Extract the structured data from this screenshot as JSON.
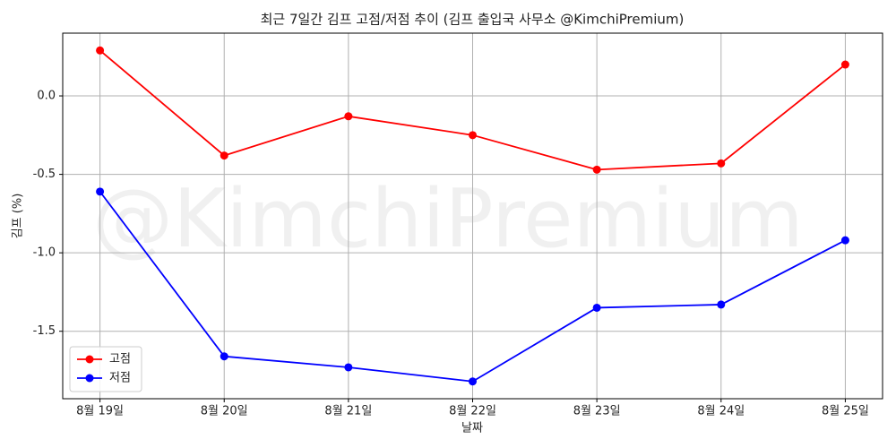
{
  "chart_data": {
    "type": "line",
    "title": "최근 7일간 김프 고점/저점 추이 (김프 출입국 사무소 @KimchiPremium)",
    "watermark": "@KimchiPremium",
    "x_label": "날짜",
    "y_label": "김프 (%)",
    "categories": [
      "8월 19일",
      "8월 20일",
      "8월 21일",
      "8월 22일",
      "8월 23일",
      "8월 24일",
      "8월 25일"
    ],
    "series": [
      {
        "name": "고점",
        "color": "#ff0000",
        "values": [
          0.29,
          -0.38,
          -0.13,
          -0.25,
          -0.47,
          -0.43,
          0.2
        ]
      },
      {
        "name": "저점",
        "color": "#0000ff",
        "values": [
          -0.61,
          -1.66,
          -1.73,
          -1.82,
          -1.35,
          -1.33,
          -0.92
        ]
      }
    ],
    "ylim": [
      -1.93,
      0.4
    ],
    "yticks": [
      -1.5,
      {
        "value": -1.0,
        "label": "-1.0"
      },
      -0.5,
      {
        "value": 0,
        "label": "0.0"
      }
    ],
    "grid": true,
    "legend": "lower left"
  }
}
